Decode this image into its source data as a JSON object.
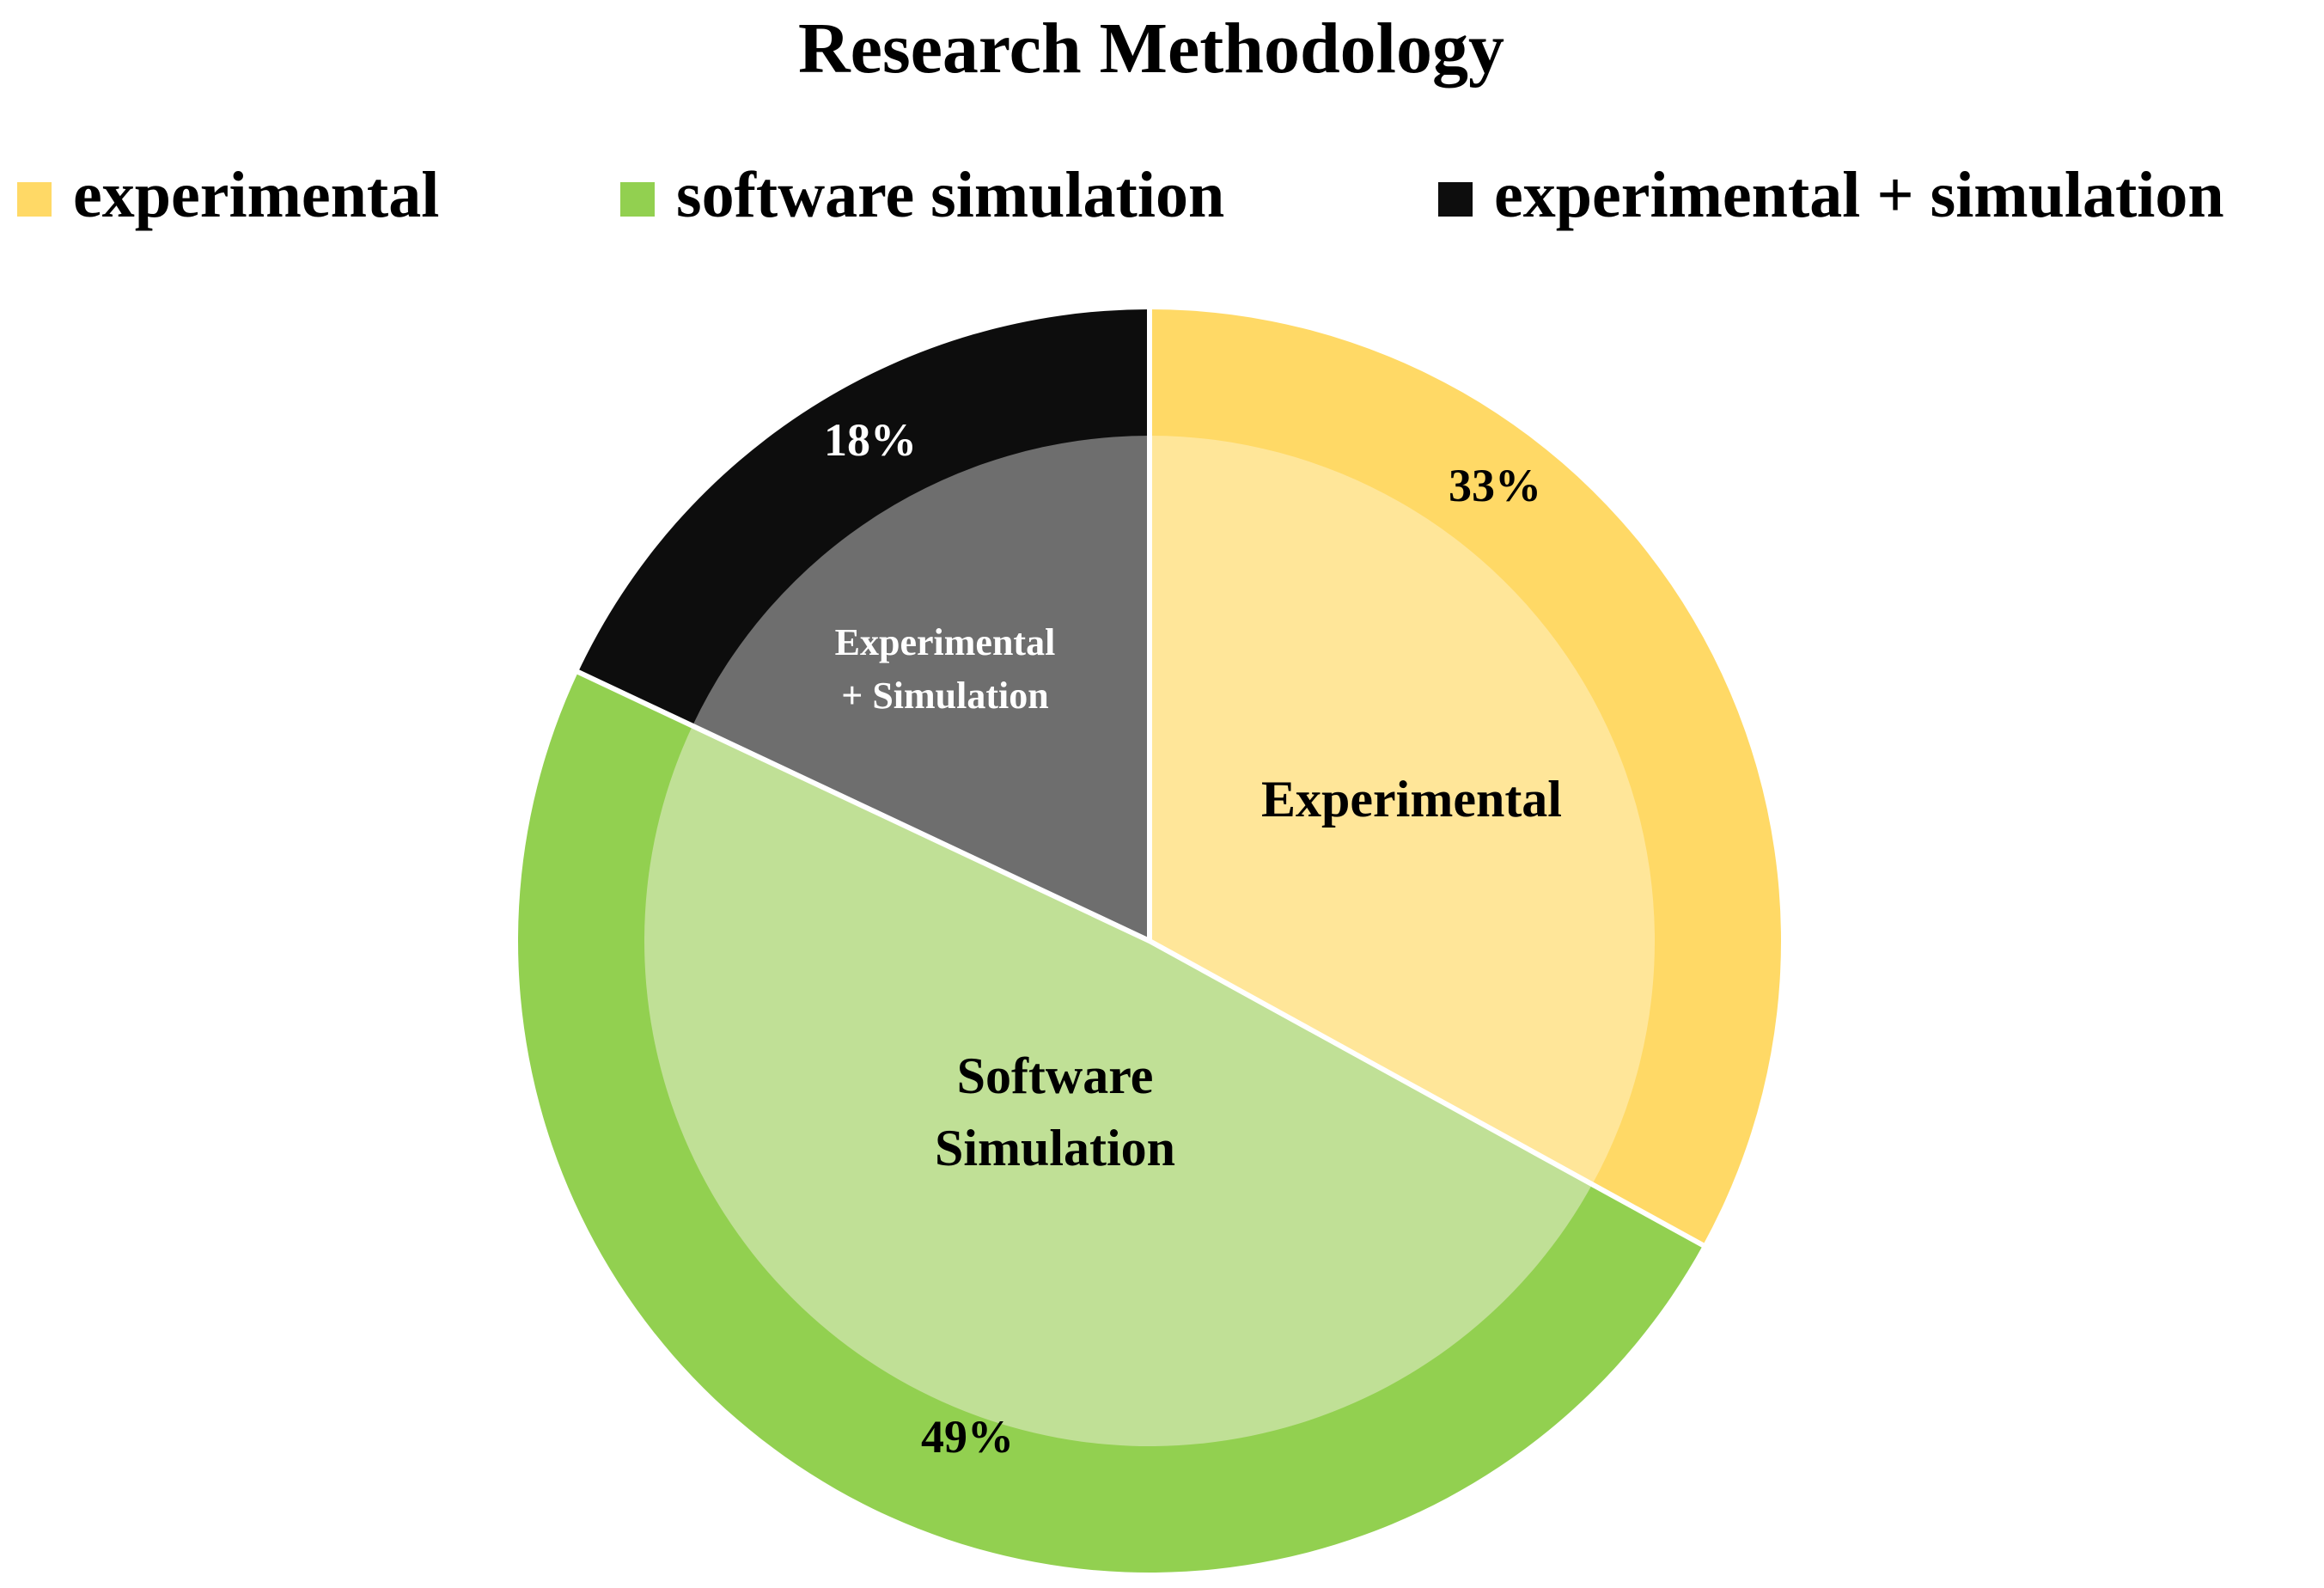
{
  "chart_data": {
    "type": "pie",
    "title": "Research Methodology",
    "legend_position": "top",
    "slices": [
      {
        "legend_label": "experimental",
        "inner_label": [
          "Experimental"
        ],
        "percent_label": "33%",
        "value": 33,
        "outer_color": "#FFD966",
        "inner_color": "#FFE699",
        "legend_color": "#FFD966",
        "text_color": "#000000"
      },
      {
        "legend_label": "software simulation",
        "inner_label": [
          "Software",
          "Simulation"
        ],
        "percent_label": "49%",
        "value": 49,
        "outer_color": "#92D050",
        "inner_color": "#C0E096",
        "legend_color": "#92D050",
        "text_color": "#000000"
      },
      {
        "legend_label": "experimental + simulation",
        "inner_label": [
          "Experimental",
          "+ Simulation"
        ],
        "percent_label": "18%",
        "value": 18,
        "outer_color": "#0D0D0D",
        "inner_color": "#6E6E6E",
        "legend_color": "#0D0D0D",
        "text_color": "#FFFFFF"
      }
    ]
  }
}
